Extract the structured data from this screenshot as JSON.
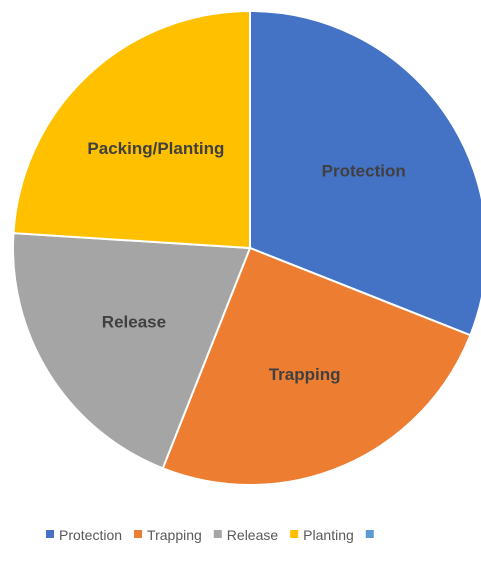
{
  "chart_data": {
    "type": "pie",
    "title": "",
    "slices": [
      {
        "label": "Protection",
        "value": 31,
        "color": "#4472C4"
      },
      {
        "label": "Trapping",
        "value": 25,
        "color": "#ED7D31"
      },
      {
        "label": "Release",
        "value": 20,
        "color": "#A5A5A5"
      },
      {
        "label": "Packing/Planting",
        "value": 24,
        "color": "#FFC000"
      }
    ],
    "legend": {
      "placement": "bottom",
      "entries": [
        {
          "label": "Protection",
          "color": "#4472C4"
        },
        {
          "label": "Trapping",
          "color": "#ED7D31"
        },
        {
          "label": "Release",
          "color": "#A5A5A5"
        },
        {
          "label": "Planting",
          "color": "#FFC000"
        },
        {
          "label": "",
          "color": "#5B9BD5"
        }
      ]
    }
  }
}
